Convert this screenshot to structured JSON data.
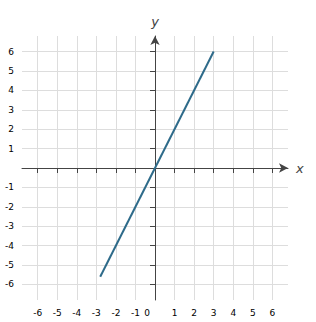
{
  "chart_data": {
    "type": "line",
    "x": [
      -2.8,
      3.0
    ],
    "values": [
      -5.6,
      6.0
    ],
    "color": "#2E6B8A",
    "xlabel": "x",
    "ylabel": "y",
    "xlim": [
      -6.8,
      6.8
    ],
    "ylim": [
      -6.8,
      6.8
    ],
    "xticks": [
      -6,
      -5,
      -4,
      -3,
      -2,
      -1,
      0,
      1,
      2,
      3,
      4,
      5,
      6
    ],
    "yticks": [
      -6,
      -5,
      -4,
      -3,
      -2,
      -1,
      1,
      2,
      3,
      4,
      5,
      6
    ],
    "grid": true
  }
}
